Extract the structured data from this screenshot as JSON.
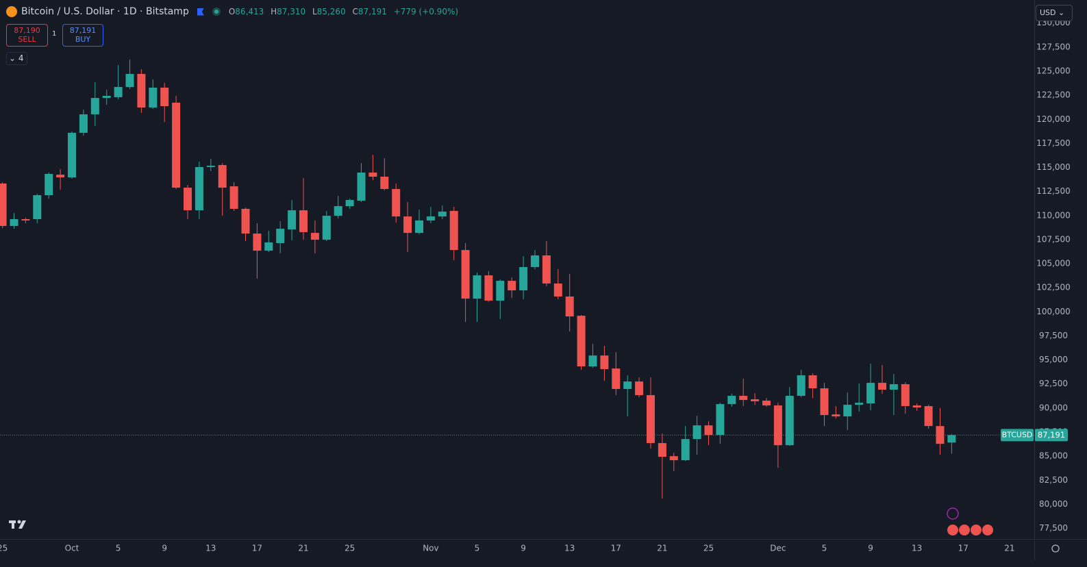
{
  "header": {
    "title": "Bitcoin / U.S. Dollar · 1D · Bitstamp",
    "ohlc": [
      {
        "key": "O",
        "value": "86,413"
      },
      {
        "key": "H",
        "value": "87,310"
      },
      {
        "key": "L",
        "value": "85,260"
      },
      {
        "key": "C",
        "value": "87,191"
      }
    ],
    "change": "+779 (+0.90%)",
    "sell": {
      "price": "87,190",
      "label": "SELL"
    },
    "spread": "1",
    "buy": {
      "price": "87,191",
      "label": "BUY"
    },
    "indicators": "4",
    "currency": "USD"
  },
  "chart_data": {
    "type": "candlestick",
    "up_color": "#26a69a",
    "down_color": "#ef5350",
    "grid": false,
    "categories": [
      "25",
      null,
      null,
      null,
      null,
      null,
      "Oct",
      null,
      null,
      null,
      "5",
      null,
      null,
      null,
      "9",
      null,
      null,
      null,
      "13",
      null,
      null,
      null,
      "17",
      null,
      null,
      null,
      "21",
      null,
      null,
      null,
      "25",
      null,
      null,
      null,
      null,
      null,
      null,
      "Nov",
      null,
      null,
      null,
      "5",
      null,
      null,
      null,
      "9",
      null,
      null,
      null,
      "13",
      null,
      null,
      null,
      "17",
      null,
      null,
      null,
      "21",
      null,
      null,
      null,
      "25",
      null,
      null,
      null,
      null,
      null,
      "Dec",
      null,
      null,
      null,
      "5",
      null,
      null,
      null,
      "9",
      null,
      null,
      null,
      "13",
      null,
      null,
      null,
      "17",
      null,
      null,
      null,
      "21"
    ],
    "open": [
      113330,
      108920,
      109630,
      109630,
      112120,
      114250,
      113970,
      118600,
      120520,
      122220,
      122300,
      123360,
      124720,
      121230,
      123290,
      121730,
      112900,
      110550,
      115040,
      115250,
      113040,
      110700,
      108130,
      106350,
      107140,
      108560,
      110550,
      108200,
      107490,
      109980,
      110980,
      111550,
      114470,
      114040,
      112760,
      109910,
      108200,
      109490,
      109910,
      110480,
      106420,
      101370,
      103790,
      101160,
      103220,
      102230,
      104650,
      105860,
      102940,
      101590,
      99590,
      94330,
      95460,
      94110,
      91980,
      92760,
      91340,
      86360,
      85000,
      84580,
      86780,
      88200,
      87210,
      90410,
      91270,
      90910,
      90770,
      90270,
      86140,
      91270,
      93400,
      92050,
      89340,
      89130,
      90340,
      90480,
      92620,
      91910,
      92480,
      90270,
      90200,
      88130,
      86413,
      null,
      null,
      null,
      null,
      null
    ],
    "high": [
      113470,
      110270,
      109770,
      112260,
      114470,
      114820,
      118740,
      121010,
      123860,
      123080,
      125640,
      126210,
      125210,
      124150,
      123790,
      122440,
      113190,
      115610,
      115890,
      115460,
      113470,
      110840,
      109200,
      108420,
      109410,
      111620,
      113900,
      109490,
      110480,
      112050,
      111760,
      115460,
      116320,
      115960,
      113330,
      111410,
      110620,
      110910,
      111050,
      110910,
      107140,
      104080,
      104220,
      103360,
      103580,
      105780,
      106420,
      107350,
      104430,
      103930,
      99660,
      96670,
      96460,
      95820,
      93400,
      93190,
      93190,
      87350,
      85360,
      88130,
      89200,
      88630,
      90550,
      91480,
      93050,
      91550,
      91050,
      90550,
      92190,
      93970,
      93610,
      92620,
      90200,
      91620,
      92550,
      94610,
      94470,
      93540,
      92690,
      90480,
      90340,
      89990,
      87310,
      null,
      null,
      null,
      null,
      null
    ],
    "low": [
      108700,
      108630,
      109200,
      109200,
      111760,
      112690,
      113830,
      118310,
      119310,
      121510,
      122080,
      123150,
      120660,
      121090,
      119730,
      112760,
      109630,
      109630,
      114610,
      109980,
      110480,
      107350,
      103440,
      106210,
      106070,
      107420,
      107490,
      106070,
      107350,
      109700,
      110700,
      111410,
      113680,
      112620,
      109270,
      106210,
      108060,
      109200,
      109630,
      105360,
      98950,
      98950,
      101020,
      99240,
      101440,
      101300,
      104430,
      102650,
      101300,
      97960,
      93970,
      94180,
      92830,
      91340,
      89130,
      91120,
      85790,
      80590,
      83440,
      84500,
      85150,
      86140,
      86280,
      90130,
      90200,
      90340,
      90130,
      83790,
      86070,
      91120,
      91050,
      88130,
      88920,
      87710,
      89630,
      89770,
      91480,
      89270,
      89410,
      89700,
      87850,
      85150,
      85260,
      null,
      null,
      null,
      null,
      null
    ],
    "close": [
      108920,
      109630,
      109490,
      112120,
      114330,
      113970,
      118600,
      120520,
      122220,
      122440,
      123360,
      124720,
      121230,
      123290,
      121370,
      112900,
      110550,
      115040,
      115180,
      112900,
      110700,
      108130,
      106350,
      107210,
      108630,
      110550,
      108280,
      107490,
      109980,
      110980,
      111620,
      114470,
      114040,
      112760,
      109910,
      108200,
      109490,
      109910,
      110410,
      106420,
      101370,
      103790,
      101160,
      103220,
      102230,
      104650,
      105860,
      102940,
      101590,
      99520,
      94330,
      95460,
      94040,
      91980,
      92760,
      91340,
      86360,
      84930,
      84580,
      86780,
      88200,
      87210,
      90410,
      91270,
      90840,
      90700,
      90270,
      86140,
      91270,
      93400,
      92050,
      89270,
      89130,
      90340,
      90550,
      92620,
      91910,
      92480,
      90200,
      90060,
      88130,
      86280,
      87191,
      null,
      null,
      null,
      null,
      null
    ],
    "ylim": [
      76400,
      132400
    ],
    "yticks": [
      {
        "value": 77500,
        "label": "77,500"
      },
      {
        "value": 80000,
        "label": "80,000"
      },
      {
        "value": 82500,
        "label": "82,500"
      },
      {
        "value": 85000,
        "label": "85,000"
      },
      {
        "value": 87500,
        "label": "87,500"
      },
      {
        "value": 90000,
        "label": "90,000"
      },
      {
        "value": 92500,
        "label": "92,500"
      },
      {
        "value": 95000,
        "label": "95,000"
      },
      {
        "value": 97500,
        "label": "97,500"
      },
      {
        "value": 100000,
        "label": "100,000"
      },
      {
        "value": 102500,
        "label": "102,500"
      },
      {
        "value": 105000,
        "label": "105,000"
      },
      {
        "value": 107500,
        "label": "107,500"
      },
      {
        "value": 110000,
        "label": "110,000"
      },
      {
        "value": 112500,
        "label": "112,500"
      },
      {
        "value": 115000,
        "label": "115,000"
      },
      {
        "value": 117500,
        "label": "117,500"
      },
      {
        "value": 120000,
        "label": "120,000"
      },
      {
        "value": 122500,
        "label": "122,500"
      },
      {
        "value": 125000,
        "label": "125,000"
      },
      {
        "value": 127500,
        "label": "127,500"
      },
      {
        "value": 130000,
        "label": "130,000"
      }
    ],
    "last_price": {
      "symbol": "BTCUSD",
      "value": 87191,
      "label": "87,191"
    }
  }
}
